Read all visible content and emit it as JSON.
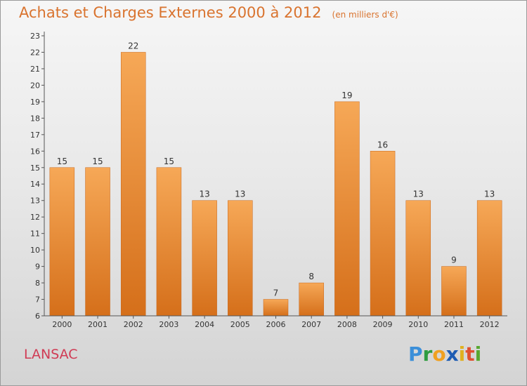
{
  "title": "Achats et Charges Externes 2000 à 2012",
  "unit_note": "(en milliers d'€)",
  "commune": "LANSAC",
  "brand": {
    "name": "Proxiti",
    "letters": [
      "P",
      "r",
      "o",
      "x",
      "i",
      "t",
      "i"
    ],
    "colors": [
      "#3b8fd9",
      "#2e9c3f",
      "#f0a020",
      "#1e5cb3",
      "#e0b020",
      "#e05030",
      "#58a830"
    ]
  },
  "colors": {
    "title": "#d9732e",
    "bar_top": "#f6a857",
    "bar_bottom": "#d56f1a",
    "axis": "#555555"
  },
  "chart_data": {
    "type": "bar",
    "categories": [
      "2000",
      "2001",
      "2002",
      "2003",
      "2004",
      "2005",
      "2006",
      "2007",
      "2008",
      "2009",
      "2010",
      "2011",
      "2012"
    ],
    "values": [
      15,
      15,
      22,
      15,
      13,
      13,
      7,
      8,
      19,
      16,
      13,
      9,
      13
    ],
    "data_labels": [
      "15",
      "15",
      "22",
      "15",
      "13",
      "13",
      "7",
      "8",
      "19",
      "16",
      "13",
      "9",
      "13"
    ],
    "ylim": [
      6,
      23
    ],
    "yticks": [
      "6",
      "7",
      "8",
      "9",
      "10",
      "11",
      "12",
      "13",
      "14",
      "15",
      "16",
      "17",
      "18",
      "19",
      "20",
      "21",
      "22",
      "23"
    ],
    "grid": false,
    "legend": "none"
  }
}
